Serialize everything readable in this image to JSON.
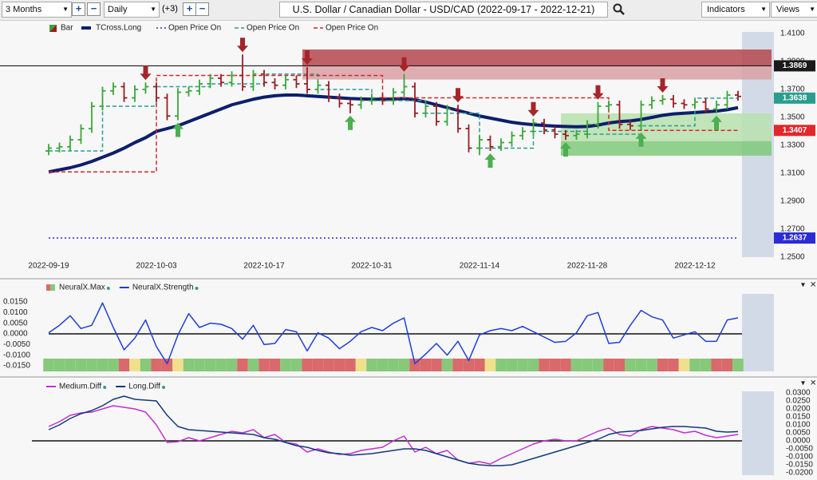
{
  "toolbar": {
    "range": "3 Months",
    "interval": "Daily",
    "offset": "(+3)",
    "title": "U.S. Dollar / Canadian Dollar - USD/CAD (2022-09-17 - 2022-12-21)",
    "indicators": "Indicators",
    "views": "Views"
  },
  "chart_data": [
    {
      "type": "ohlc",
      "name": "Bar",
      "up_color": "#3aa53a",
      "down_color": "#9b1c22",
      "categories": [
        "2022-09-19",
        null,
        null,
        null,
        null,
        null,
        null,
        null,
        null,
        null,
        "2022-10-03",
        null,
        null,
        null,
        null,
        null,
        null,
        null,
        null,
        null,
        "2022-10-17",
        null,
        null,
        null,
        null,
        null,
        null,
        null,
        null,
        null,
        "2022-10-31",
        null,
        null,
        null,
        null,
        null,
        null,
        null,
        null,
        null,
        "2022-11-14",
        null,
        null,
        null,
        null,
        null,
        null,
        null,
        null,
        null,
        "2022-11-28",
        null,
        null,
        null,
        null,
        null,
        null,
        null,
        null,
        null,
        "2022-12-12",
        null,
        null,
        null,
        null
      ],
      "open": [
        1.326,
        1.328,
        1.329,
        1.334,
        1.342,
        1.358,
        1.369,
        1.372,
        1.364,
        1.37,
        1.372,
        1.364,
        1.351,
        1.368,
        1.369,
        1.374,
        1.378,
        1.375,
        1.38,
        1.372,
        1.381,
        1.375,
        1.373,
        1.377,
        1.374,
        1.37,
        1.373,
        1.364,
        1.36,
        1.359,
        1.362,
        1.364,
        1.362,
        1.368,
        1.372,
        1.353,
        1.358,
        1.347,
        1.356,
        1.342,
        1.328,
        1.334,
        1.329,
        1.332,
        1.337,
        1.34,
        1.346,
        1.341,
        1.338,
        1.337,
        1.338,
        1.345,
        1.358,
        1.359,
        1.345,
        1.344,
        1.359,
        1.362,
        1.363,
        1.36,
        1.359,
        1.361,
        1.356,
        1.359,
        1.366
      ],
      "high": [
        1.331,
        1.332,
        1.337,
        1.345,
        1.361,
        1.372,
        1.375,
        1.375,
        1.373,
        1.375,
        1.375,
        1.367,
        1.371,
        1.372,
        1.377,
        1.381,
        1.381,
        1.383,
        1.395,
        1.384,
        1.384,
        1.378,
        1.38,
        1.38,
        1.386,
        1.376,
        1.376,
        1.367,
        1.363,
        1.365,
        1.367,
        1.367,
        1.371,
        1.381,
        1.375,
        1.361,
        1.361,
        1.359,
        1.359,
        1.345,
        1.337,
        1.337,
        1.335,
        1.34,
        1.343,
        1.349,
        1.349,
        1.344,
        1.341,
        1.341,
        1.348,
        1.361,
        1.362,
        1.362,
        1.348,
        1.362,
        1.365,
        1.366,
        1.366,
        1.363,
        1.364,
        1.364,
        1.362,
        1.369,
        1.369
      ],
      "low": [
        1.323,
        1.325,
        1.326,
        1.331,
        1.339,
        1.355,
        1.366,
        1.361,
        1.361,
        1.367,
        1.361,
        1.348,
        1.348,
        1.365,
        1.366,
        1.371,
        1.372,
        1.372,
        1.369,
        1.369,
        1.372,
        1.37,
        1.37,
        1.371,
        1.367,
        1.367,
        1.361,
        1.357,
        1.353,
        1.356,
        1.359,
        1.359,
        1.359,
        1.365,
        1.35,
        1.35,
        1.344,
        1.344,
        1.339,
        1.325,
        1.323,
        1.326,
        1.326,
        1.329,
        1.334,
        1.337,
        1.338,
        1.335,
        1.334,
        1.334,
        1.335,
        1.342,
        1.355,
        1.342,
        1.341,
        1.341,
        1.356,
        1.359,
        1.357,
        1.356,
        1.356,
        1.353,
        1.353,
        1.356,
        1.362
      ],
      "close": [
        1.328,
        1.329,
        1.334,
        1.342,
        1.358,
        1.369,
        1.372,
        1.364,
        1.37,
        1.372,
        1.364,
        1.351,
        1.368,
        1.369,
        1.374,
        1.378,
        1.375,
        1.38,
        1.372,
        1.381,
        1.375,
        1.373,
        1.377,
        1.374,
        1.37,
        1.373,
        1.364,
        1.36,
        1.359,
        1.362,
        1.364,
        1.362,
        1.368,
        1.372,
        1.353,
        1.358,
        1.347,
        1.356,
        1.342,
        1.328,
        1.334,
        1.329,
        1.332,
        1.337,
        1.34,
        1.346,
        1.341,
        1.338,
        1.337,
        1.338,
        1.345,
        1.358,
        1.359,
        1.345,
        1.344,
        1.359,
        1.362,
        1.363,
        1.36,
        1.359,
        1.361,
        1.356,
        1.359,
        1.366,
        1.365
      ],
      "series": [
        {
          "name": "TCross.Long",
          "color": "#0b1f6b",
          "width": 4,
          "values": [
            1.311,
            1.3125,
            1.314,
            1.316,
            1.3185,
            1.3215,
            1.3245,
            1.328,
            1.332,
            1.3355,
            1.34,
            1.342,
            1.344,
            1.347,
            1.35,
            1.353,
            1.356,
            1.359,
            1.361,
            1.363,
            1.3645,
            1.3655,
            1.366,
            1.366,
            1.3655,
            1.365,
            1.3645,
            1.364,
            1.3635,
            1.3632,
            1.363,
            1.363,
            1.3632,
            1.3635,
            1.3625,
            1.361,
            1.359,
            1.357,
            1.355,
            1.353,
            1.351,
            1.3495,
            1.348,
            1.3465,
            1.3455,
            1.3448,
            1.3442,
            1.3438,
            1.3435,
            1.3433,
            1.3435,
            1.3445,
            1.346,
            1.347,
            1.3475,
            1.3485,
            1.35,
            1.3515,
            1.3525,
            1.353,
            1.3535,
            1.354,
            1.3545,
            1.3555,
            1.357
          ]
        },
        {
          "name": "Open Price On",
          "color": "#2b2bd6",
          "dash": "dotted",
          "values": [
            1.2637,
            1.2637,
            1.2637,
            1.2637,
            1.2637,
            1.2637,
            1.2637,
            1.2637,
            1.2637,
            1.2637,
            1.2637,
            1.2637,
            1.2637,
            1.2637,
            1.2637,
            1.2637,
            1.2637,
            1.2637,
            1.2637,
            1.2637,
            1.2637,
            1.2637,
            1.2637,
            1.2637,
            1.2637,
            1.2637,
            1.2637,
            1.2637,
            1.2637,
            1.2637,
            1.2637,
            1.2637,
            1.2637,
            1.2637,
            1.2637,
            1.2637,
            1.2637,
            1.2637,
            1.2637,
            1.2637,
            1.2637,
            1.2637,
            1.2637,
            1.2637,
            1.2637,
            1.2637,
            1.2637,
            1.2637,
            1.2637,
            1.2637,
            1.2637,
            1.2637,
            1.2637,
            1.2637,
            1.2637,
            1.2637,
            1.2637,
            1.2637,
            1.2637,
            1.2637,
            1.2637,
            1.2637,
            1.2637,
            1.2637,
            1.2637
          ]
        },
        {
          "name": "Open Price On",
          "color": "#2a9d8f",
          "dash": "dashed",
          "step": true,
          "values": [
            1.326,
            1.326,
            1.326,
            1.326,
            1.326,
            1.358,
            1.358,
            1.358,
            1.358,
            1.358,
            1.372,
            1.372,
            1.372,
            1.372,
            1.372,
            1.374,
            1.374,
            1.374,
            1.374,
            1.374,
            1.381,
            1.381,
            1.381,
            1.381,
            1.381,
            1.37,
            1.37,
            1.37,
            1.37,
            1.37,
            1.362,
            1.362,
            1.362,
            1.362,
            1.362,
            1.353,
            1.353,
            1.353,
            1.353,
            1.353,
            1.328,
            1.328,
            1.328,
            1.328,
            1.328,
            1.34,
            1.34,
            1.34,
            1.34,
            1.34,
            1.338,
            1.338,
            1.338,
            1.338,
            1.338,
            1.344,
            1.344,
            1.344,
            1.344,
            1.344,
            1.3638,
            1.3638,
            1.3638,
            1.3638,
            1.3638
          ]
        },
        {
          "name": "Open Price On",
          "color": "#d62728",
          "dash": "dashed",
          "step": true,
          "values": [
            1.311,
            1.311,
            1.311,
            1.311,
            1.311,
            1.311,
            1.311,
            1.311,
            1.311,
            1.311,
            1.38,
            1.38,
            1.38,
            1.38,
            1.38,
            1.38,
            1.38,
            1.38,
            1.38,
            1.38,
            1.38,
            1.38,
            1.38,
            1.38,
            1.38,
            1.38,
            1.38,
            1.38,
            1.38,
            1.38,
            1.38,
            1.364,
            1.364,
            1.364,
            1.364,
            1.364,
            1.364,
            1.364,
            1.364,
            1.364,
            1.364,
            1.364,
            1.364,
            1.364,
            1.364,
            1.364,
            1.364,
            1.364,
            1.364,
            1.364,
            1.364,
            1.364,
            1.3407,
            1.3407,
            1.3407,
            1.3407,
            1.3407,
            1.3407,
            1.3407,
            1.3407,
            1.3407,
            1.3407,
            1.3407,
            1.3407,
            1.3407
          ]
        }
      ],
      "levels": [
        {
          "value": 1.3869,
          "color": "#1a1a1a",
          "line": true
        },
        {
          "value": 1.3638,
          "color": "#2a9d8f"
        },
        {
          "value": 1.3407,
          "color": "#e0282c"
        },
        {
          "value": 1.2637,
          "color": "#2b2bd6"
        }
      ],
      "zones": [
        {
          "low": 1.3869,
          "high": 1.3986,
          "color": "#b5484e"
        },
        {
          "low": 1.3771,
          "high": 1.3869,
          "color": "#d9a0a4"
        },
        {
          "low": 1.333,
          "high": 1.3529,
          "color": "#b7e0ae"
        },
        {
          "low": 1.3226,
          "high": 1.333,
          "color": "#7fc97a"
        }
      ],
      "ylim": [
        1.25,
        1.41
      ],
      "yticks": [
        {
          "value": 1.41,
          "label": "1.4100"
        },
        {
          "value": 1.39,
          "label": "1.3900"
        },
        {
          "value": 1.37,
          "label": "1.3700"
        },
        {
          "value": 1.35,
          "label": "1.3500"
        },
        {
          "value": 1.33,
          "label": "1.3300"
        },
        {
          "value": 1.31,
          "label": "1.3100"
        },
        {
          "value": 1.29,
          "label": "1.2900"
        },
        {
          "value": 1.27,
          "label": "1.2700"
        },
        {
          "value": 1.25,
          "label": "1.2500"
        }
      ]
    },
    {
      "type": "line",
      "series": [
        {
          "name": "NeuralX.Max",
          "colors": [
            "#86c97a",
            "#86c97a",
            "#86c97a",
            "#86c97a",
            "#86c97a",
            "#86c97a",
            "#86c97a",
            "#d9696b",
            "#f0e08c",
            "#86c97a",
            "#d9696b",
            "#d9696b",
            "#f0e08c",
            "#86c97a",
            "#86c97a",
            "#86c97a",
            "#86c97a",
            "#86c97a",
            "#d9696b",
            "#86c97a",
            "#d9696b",
            "#d9696b",
            "#86c97a",
            "#86c97a",
            "#d9696b",
            "#d9696b",
            "#d9696b",
            "#d9696b",
            "#d9696b",
            "#f0e08c",
            "#86c97a",
            "#86c97a",
            "#86c97a",
            "#86c97a",
            "#d9696b",
            "#d9696b",
            "#d9696b",
            "#86c97a",
            "#d9696b",
            "#d9696b",
            "#d9696b",
            "#f0e08c",
            "#86c97a",
            "#86c97a",
            "#86c97a",
            "#86c97a",
            "#d9696b",
            "#d9696b",
            "#d9696b",
            "#86c97a",
            "#86c97a",
            "#86c97a",
            "#d9696b",
            "#d9696b",
            "#86c97a",
            "#86c97a",
            "#86c97a",
            "#d9696b",
            "#d9696b",
            "#f0e08c",
            "#86c97a",
            "#86c97a",
            "#d9696b",
            "#d9696b",
            "#86c97a"
          ]
        },
        {
          "name": "NeuralX.Strength",
          "color": "#1f3fd6",
          "values": [
            0.0005,
            0.004,
            0.0085,
            0.0025,
            0.004,
            0.0145,
            0.003,
            -0.0075,
            -0.002,
            0.0065,
            -0.006,
            -0.014,
            -0.0005,
            0.0095,
            0.003,
            0.005,
            0.0045,
            0.0025,
            -0.0025,
            0.004,
            -0.005,
            -0.0045,
            0.002,
            0.001,
            -0.008,
            0.0005,
            -0.002,
            -0.007,
            -0.0035,
            0.001,
            0.003,
            0.0015,
            0.005,
            0.0075,
            -0.014,
            -0.0095,
            -0.0045,
            -0.01,
            -0.0035,
            -0.0125,
            -0.0005,
            0.0015,
            0.0025,
            0.0015,
            0.0035,
            0.001,
            -0.0015,
            -0.004,
            -0.0035,
            0.0005,
            0.0085,
            0.01,
            -0.0045,
            -0.004,
            0.004,
            0.011,
            0.008,
            0.0065,
            -0.002,
            -0.0005,
            0.001,
            -0.0035,
            -0.0035,
            0.0065,
            0.0075
          ]
        }
      ],
      "ylim": [
        -0.015,
        0.015
      ],
      "yticks": [
        {
          "value": 0.015,
          "label": "0.0150"
        },
        {
          "value": 0.01,
          "label": "0.0100"
        },
        {
          "value": 0.005,
          "label": "0.0050"
        },
        {
          "value": 0,
          "label": "0.0000"
        },
        {
          "value": -0.005,
          "label": "-0.0050"
        },
        {
          "value": -0.01,
          "label": "-0.0100"
        },
        {
          "value": -0.015,
          "label": "-0.0150"
        }
      ]
    },
    {
      "type": "line",
      "series": [
        {
          "name": "Medium.Diff",
          "color": "#c030d0",
          "values": [
            0.009,
            0.012,
            0.016,
            0.0175,
            0.018,
            0.02,
            0.022,
            0.021,
            0.02,
            0.018,
            0.01,
            -0.001,
            -0.0005,
            0.002,
            0,
            0.002,
            0.004,
            0.006,
            0.005,
            0.007,
            0.002,
            0.004,
            -0.001,
            -0.002,
            -0.007,
            -0.005,
            -0.007,
            -0.0085,
            -0.008,
            -0.006,
            -0.005,
            -0.004,
            0,
            0.003,
            -0.007,
            -0.004,
            -0.008,
            -0.006,
            -0.012,
            -0.014,
            -0.013,
            -0.0145,
            -0.011,
            -0.008,
            -0.005,
            -0.002,
            0,
            0.001,
            0,
            0,
            0.003,
            0.006,
            0.008,
            0.004,
            0.003,
            0.007,
            0.009,
            0.008,
            0.007,
            0.005,
            0.006,
            0.0035,
            0.002,
            0.003,
            0.004
          ]
        },
        {
          "name": "Long.Diff",
          "color": "#123a7a",
          "values": [
            0.007,
            0.01,
            0.014,
            0.017,
            0.019,
            0.022,
            0.026,
            0.028,
            0.026,
            0.0255,
            0.025,
            0.016,
            0.009,
            0.007,
            0.0065,
            0.006,
            0.0055,
            0.005,
            0.0045,
            0.004,
            0.002,
            0.001,
            -0.001,
            -0.003,
            -0.004,
            -0.006,
            -0.0075,
            -0.008,
            -0.009,
            -0.0085,
            -0.008,
            -0.007,
            -0.006,
            -0.005,
            -0.005,
            -0.006,
            -0.008,
            -0.01,
            -0.012,
            -0.014,
            -0.015,
            -0.0155,
            -0.0155,
            -0.015,
            -0.013,
            -0.011,
            -0.009,
            -0.007,
            -0.005,
            -0.003,
            -0.001,
            0.001,
            0.004,
            0.0055,
            0.006,
            0.0065,
            0.0075,
            0.0085,
            0.009,
            0.009,
            0.0085,
            0.008,
            0.006,
            0.0055,
            0.0058
          ]
        }
      ],
      "ylim": [
        -0.02,
        0.03
      ],
      "yticks": [
        {
          "value": 0.03,
          "label": "0.0300"
        },
        {
          "value": 0.025,
          "label": "0.0250"
        },
        {
          "value": 0.02,
          "label": "0.0200"
        },
        {
          "value": 0.015,
          "label": "0.0150"
        },
        {
          "value": 0.01,
          "label": "0.0100"
        },
        {
          "value": 0.005,
          "label": "0.0050"
        },
        {
          "value": 0,
          "label": "0.0000"
        },
        {
          "value": -0.005,
          "label": "-0.0050"
        },
        {
          "value": -0.01,
          "label": "-0.0100"
        },
        {
          "value": -0.015,
          "label": "-0.0150"
        },
        {
          "value": -0.02,
          "label": "-0.0200"
        }
      ]
    }
  ]
}
